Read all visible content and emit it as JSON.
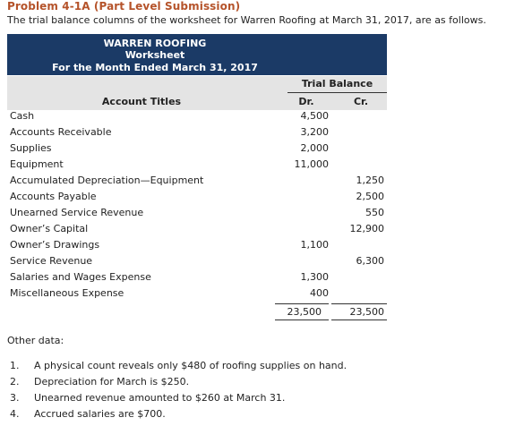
{
  "problem": {
    "title": "Problem 4-1A (Part Level Submission)",
    "intro": "The trial balance columns of the worksheet for Warren Roofing at March 31, 2017, are as follows."
  },
  "worksheet": {
    "company": "WARREN ROOFING",
    "name": "Worksheet",
    "period": "For the Month Ended March 31, 2017",
    "section_label": "Trial Balance",
    "col_account": "Account Titles",
    "col_dr": "Dr.",
    "col_cr": "Cr.",
    "rows": [
      {
        "account": "Cash",
        "dr": "4,500",
        "cr": ""
      },
      {
        "account": "Accounts Receivable",
        "dr": "3,200",
        "cr": ""
      },
      {
        "account": "Supplies",
        "dr": "2,000",
        "cr": ""
      },
      {
        "account": "Equipment",
        "dr": "11,000",
        "cr": ""
      },
      {
        "account": "Accumulated Depreciation—Equipment",
        "dr": "",
        "cr": "1,250"
      },
      {
        "account": "Accounts Payable",
        "dr": "",
        "cr": "2,500"
      },
      {
        "account": "Unearned Service Revenue",
        "dr": "",
        "cr": "550"
      },
      {
        "account": "Owner’s Capital",
        "dr": "",
        "cr": "12,900"
      },
      {
        "account": "Owner’s Drawings",
        "dr": "1,100",
        "cr": ""
      },
      {
        "account": "Service Revenue",
        "dr": "",
        "cr": "6,300"
      },
      {
        "account": "Salaries and Wages Expense",
        "dr": "1,300",
        "cr": ""
      },
      {
        "account": "Miscellaneous Expense",
        "dr": "400",
        "cr": ""
      }
    ],
    "total_dr": "23,500",
    "total_cr": "23,500"
  },
  "other_data": {
    "label": "Other data:",
    "items": [
      {
        "num": "1.",
        "text": "A physical count reveals only $480 of roofing supplies on hand."
      },
      {
        "num": "2.",
        "text": "Depreciation for March is $250."
      },
      {
        "num": "3.",
        "text": "Unearned revenue amounted to $260 at March 31."
      },
      {
        "num": "4.",
        "text": "Accrued salaries are $700."
      }
    ]
  },
  "colors": {
    "title": "#b5532a",
    "header_bg": "#1b3a66",
    "band_bg": "#e4e4e4"
  }
}
